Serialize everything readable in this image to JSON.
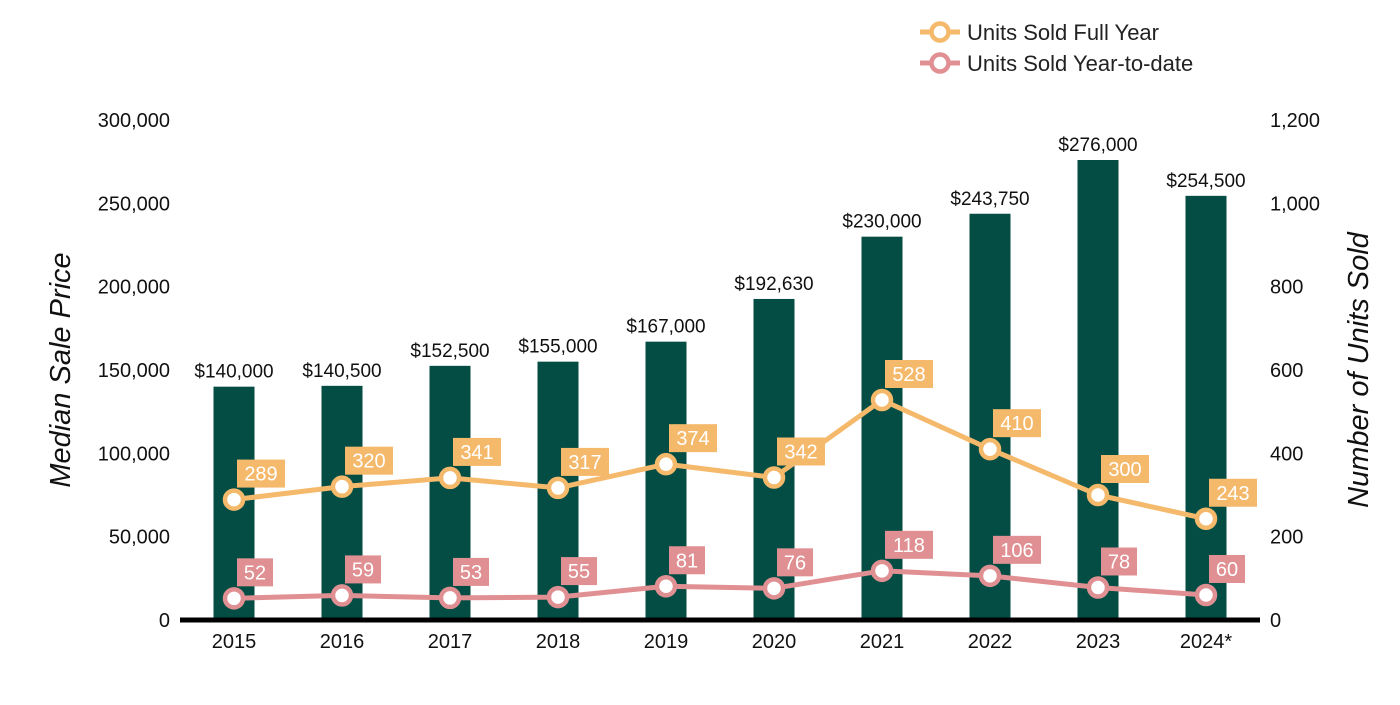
{
  "chart_data": {
    "type": "bar",
    "title": "",
    "categories": [
      "2015",
      "2016",
      "2017",
      "2018",
      "2019",
      "2020",
      "2021",
      "2022",
      "2023",
      "2024*"
    ],
    "bar_series": {
      "name": "",
      "values": [
        140000,
        140500,
        152500,
        155000,
        167000,
        192630,
        230000,
        243750,
        276000,
        254500
      ],
      "labels": [
        "$140,000",
        "$140,500",
        "$152,500",
        "$155,000",
        "$167,000",
        "$192,630",
        "$230,000",
        "$243,750",
        "$276,000",
        "$254,500"
      ],
      "color": "#034d45"
    },
    "line_series": [
      {
        "name": "Units Sold Full Year",
        "values": [
          289,
          320,
          341,
          317,
          374,
          342,
          528,
          410,
          300,
          243
        ],
        "color": "#f5b96b"
      },
      {
        "name": "Units Sold Year-to-date",
        "values": [
          52,
          59,
          53,
          55,
          81,
          76,
          118,
          106,
          78,
          60
        ],
        "color": "#e09092"
      }
    ],
    "ylabel": "Median Sale Price",
    "ylim": [
      0,
      300000
    ],
    "yticks": [
      "0",
      "50,000",
      "100,000",
      "150,000",
      "200,000",
      "250,000",
      "300,000"
    ],
    "y2label": "Number of Units Sold",
    "y2lim": [
      0,
      1200
    ],
    "y2ticks": [
      "0",
      "200",
      "400",
      "600",
      "800",
      "1,000",
      "1,200"
    ],
    "legend_position": "top-right",
    "grid": false
  }
}
